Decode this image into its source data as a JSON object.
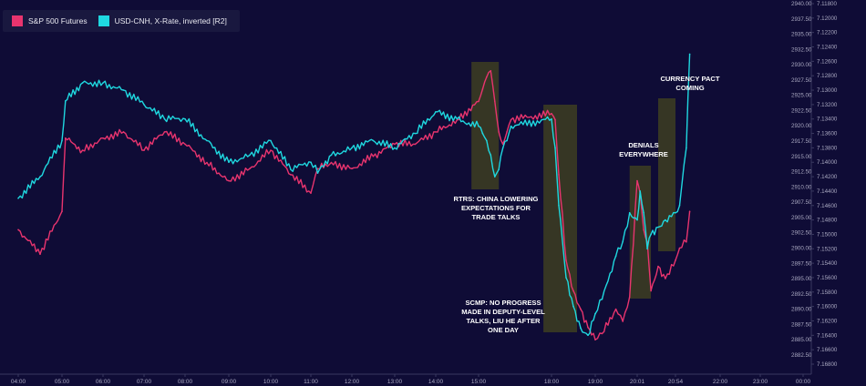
{
  "legend": {
    "items": [
      {
        "label": "S&P 500 Futures",
        "color": "#e8346e"
      },
      {
        "label": "USD-CNH, X-Rate, inverted [R2]",
        "color": "#1fd8e0"
      }
    ]
  },
  "annotations": {
    "rtrs": "RTRS: CHINA LOWERING\nEXPECTATIONS FOR\nTRADE TALKS",
    "scmp": "SCMP: NO PROGRESS\nMADE IN DEPUTY-LEVEL\nTALKS, LIU HE AFTER\nONE DAY",
    "denials": "DENIALS\nEVERYWHERE",
    "pact": "CURRENCY PACT\nCOMING"
  },
  "colors": {
    "background": "#0f0c36",
    "highlight": "#3b3b22",
    "axis_text": "#a9a8c0"
  },
  "chart_data": {
    "type": "line",
    "x_ticks": [
      "04:00",
      "05:00",
      "06:00",
      "07:00",
      "08:00",
      "09:00",
      "10:00",
      "11:00",
      "12:00",
      "13:00",
      "14:00",
      "15:00",
      "18:00",
      "19:00",
      "20:01",
      "20:54",
      "22:00",
      "23:00",
      "00:00"
    ],
    "y_left_ticks": [
      "2882.50",
      "2885.00",
      "2887.50",
      "2890.00",
      "2892.50",
      "2895.00",
      "2897.50",
      "2900.00",
      "2902.50",
      "2905.00",
      "2907.50",
      "2910.00",
      "2912.50",
      "2915.00",
      "2917.50",
      "2920.00",
      "2922.50",
      "2925.00",
      "2927.50",
      "2930.00",
      "2932.50",
      "2935.00",
      "2937.50",
      "2940.00"
    ],
    "y_right_ticks": [
      "7.11800",
      "7.12000",
      "7.12200",
      "7.12400",
      "7.12600",
      "7.12800",
      "7.13000",
      "7.13200",
      "7.13400",
      "7.13600",
      "7.13800",
      "7.14000",
      "7.14200",
      "7.14400",
      "7.14600",
      "7.14800",
      "7.15000",
      "7.15200",
      "7.15400",
      "7.15600",
      "7.15800",
      "7.16000",
      "7.16200",
      "7.16400",
      "7.16600",
      "7.16800"
    ],
    "y_left_range": [
      2881,
      2940
    ],
    "y_right_range": [
      7.118,
      7.168
    ],
    "series": [
      {
        "name": "S&P 500 Futures",
        "color": "#e8346e",
        "axis": "left",
        "x": [
          "04:00",
          "04:30",
          "05:00",
          "05:05",
          "05:30",
          "06:00",
          "06:30",
          "07:00",
          "07:30",
          "08:00",
          "08:30",
          "09:00",
          "09:30",
          "10:00",
          "10:30",
          "11:00",
          "11:10",
          "11:30",
          "12:00",
          "12:30",
          "13:00",
          "13:30",
          "14:00",
          "14:30",
          "15:00",
          "15:10",
          "15:20",
          "15:30",
          "15:40",
          "15:50",
          "16:00",
          "16:10",
          "16:20",
          "18:00",
          "18:05",
          "18:10",
          "18:20",
          "18:30",
          "18:40",
          "18:50",
          "19:00",
          "19:10",
          "19:30",
          "19:40",
          "19:50",
          "20:01",
          "20:05",
          "20:10",
          "20:15",
          "20:20",
          "20:30",
          "20:40",
          "20:54",
          "21:00",
          "21:10",
          "21:15"
        ],
        "values": [
          2903,
          2899,
          2906,
          2918,
          2916,
          2918,
          2919,
          2916,
          2919,
          2917,
          2914,
          2911,
          2913,
          2916,
          2912,
          2909,
          2913,
          2914,
          2913,
          2915,
          2917,
          2917,
          2919,
          2921,
          2924,
          2926,
          2928,
          2929,
          2924,
          2919,
          2917,
          2919,
          2921,
          2922,
          2921,
          2912,
          2898,
          2893,
          2890,
          2887,
          2885,
          2886,
          2890,
          2888,
          2892,
          2911,
          2909,
          2903,
          2901,
          2893,
          2897,
          2895,
          2898,
          2900,
          2901,
          2906
        ]
      },
      {
        "name": "USD-CNH, X-Rate, inverted [R2]",
        "color": "#1fd8e0",
        "axis": "right",
        "x": [
          "04:00",
          "04:30",
          "05:00",
          "05:05",
          "05:30",
          "06:00",
          "06:30",
          "07:00",
          "07:30",
          "08:00",
          "08:30",
          "09:00",
          "09:30",
          "10:00",
          "10:30",
          "11:00",
          "11:10",
          "11:30",
          "12:00",
          "12:30",
          "13:00",
          "13:30",
          "14:00",
          "14:30",
          "15:00",
          "15:10",
          "15:20",
          "15:30",
          "15:40",
          "15:50",
          "16:00",
          "16:10",
          "16:20",
          "18:00",
          "18:05",
          "18:10",
          "18:20",
          "18:30",
          "18:40",
          "18:50",
          "19:00",
          "19:10",
          "19:30",
          "19:40",
          "19:50",
          "20:01",
          "20:05",
          "20:10",
          "20:15",
          "20:20",
          "20:30",
          "20:40",
          "20:54",
          "21:00",
          "21:10",
          "21:15"
        ],
        "values": [
          7.145,
          7.142,
          7.137,
          7.1315,
          7.129,
          7.129,
          7.13,
          7.132,
          7.134,
          7.134,
          7.137,
          7.14,
          7.139,
          7.137,
          7.141,
          7.14,
          7.1415,
          7.139,
          7.138,
          7.137,
          7.138,
          7.136,
          7.133,
          7.134,
          7.135,
          7.136,
          7.137,
          7.139,
          7.142,
          7.141,
          7.138,
          7.137,
          7.135,
          7.134,
          7.138,
          7.146,
          7.156,
          7.16,
          7.163,
          7.164,
          7.161,
          7.159,
          7.153,
          7.151,
          7.147,
          7.148,
          7.144,
          7.147,
          7.152,
          7.15,
          7.149,
          7.148,
          7.147,
          7.146,
          7.138,
          7.125
        ]
      }
    ],
    "highlight_windows": [
      {
        "from": "14:50",
        "to": "15:50"
      },
      {
        "from": "17:40",
        "to": "18:35"
      },
      {
        "from": "19:50",
        "to": "20:20"
      },
      {
        "from": "20:30",
        "to": "20:54"
      }
    ]
  }
}
